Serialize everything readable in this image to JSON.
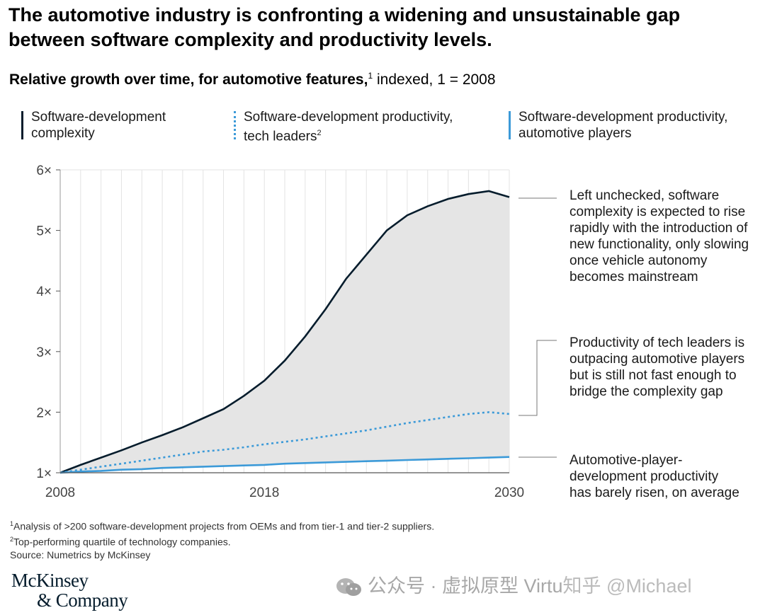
{
  "title": "The automotive industry is confronting a widening and unsustainable gap between software complexity and productivity levels.",
  "subtitle": {
    "bold": "Relative growth over time, for automotive features,",
    "sup": "1",
    "rest": " indexed, 1 = 2008"
  },
  "legend": [
    {
      "line1": "Software-development",
      "line2": "complexity",
      "sup": ""
    },
    {
      "line1": "Software-development productivity,",
      "line2": "tech leaders",
      "sup": "2"
    },
    {
      "line1": "Software-development productivity,",
      "line2": "automotive players",
      "sup": ""
    }
  ],
  "annotations": [
    {
      "lines": [
        "Left unchecked, software",
        "complexity is expected to rise",
        "rapidly with the introduction of",
        "new functionality, only slowing",
        "once vehicle autonomy",
        "becomes mainstream"
      ]
    },
    {
      "lines": [
        "Productivity of tech leaders is",
        "outpacing automotive players",
        "but is still not fast enough to",
        "bridge the complexity gap"
      ]
    },
    {
      "lines": [
        "Automotive-player-",
        "development productivity",
        "has barely risen, on average"
      ]
    }
  ],
  "footnotes": [
    {
      "sup": "1",
      "text": "Analysis of >200 software-development projects from OEMs and from tier-1 and tier-2 suppliers."
    },
    {
      "sup": "2",
      "text": "Top-performing quartile of technology companies."
    },
    {
      "sup": "",
      "text": "Source: Numetrics by McKinsey"
    }
  ],
  "logo": {
    "line1": "McKinsey",
    "line2": "& Company"
  },
  "watermark": {
    "main": "公众号 · 虚拟原型 Virtu",
    "tail": "知乎 @Michael"
  },
  "colors": {
    "dark": "#051c2c",
    "light": "#3c9ad8",
    "fill": "#e5e5e5",
    "grid": "#e3e3e3"
  },
  "chart_data": {
    "type": "line",
    "title": "Relative growth over time, for automotive features, indexed, 1 = 2008",
    "xlabel": "",
    "ylabel": "",
    "xlim": [
      2008,
      2030
    ],
    "ylim": [
      1,
      6
    ],
    "x_ticks": [
      {
        "value": 2008,
        "label": "2008"
      },
      {
        "value": 2018,
        "label": "2018"
      },
      {
        "value": 2030,
        "label": "2030"
      }
    ],
    "y_ticks": [
      {
        "value": 1,
        "label": "1×"
      },
      {
        "value": 2,
        "label": "2×"
      },
      {
        "value": 3,
        "label": "3×"
      },
      {
        "value": 4,
        "label": "4×"
      },
      {
        "value": 5,
        "label": "5×"
      },
      {
        "value": 6,
        "label": "6×"
      }
    ],
    "grid": "vertical",
    "x": [
      2008,
      2009,
      2010,
      2011,
      2012,
      2013,
      2014,
      2015,
      2016,
      2017,
      2018,
      2019,
      2020,
      2021,
      2022,
      2023,
      2024,
      2025,
      2026,
      2027,
      2028,
      2029,
      2030
    ],
    "series": [
      {
        "name": "Software-development complexity",
        "style": "solid-dark",
        "values": [
          1.0,
          1.13,
          1.25,
          1.37,
          1.5,
          1.62,
          1.75,
          1.9,
          2.05,
          2.27,
          2.52,
          2.85,
          3.25,
          3.7,
          4.2,
          4.6,
          5.0,
          5.25,
          5.4,
          5.52,
          5.6,
          5.65,
          5.55
        ]
      },
      {
        "name": "Software-development productivity, tech leaders",
        "style": "dotted-light",
        "values": [
          1.0,
          1.05,
          1.1,
          1.15,
          1.2,
          1.25,
          1.3,
          1.35,
          1.38,
          1.42,
          1.47,
          1.51,
          1.55,
          1.6,
          1.65,
          1.7,
          1.76,
          1.82,
          1.87,
          1.92,
          1.97,
          2.0,
          1.97
        ]
      },
      {
        "name": "Software-development productivity, automotive players",
        "style": "solid-light",
        "values": [
          1.0,
          1.02,
          1.03,
          1.05,
          1.06,
          1.08,
          1.09,
          1.1,
          1.11,
          1.12,
          1.13,
          1.15,
          1.16,
          1.17,
          1.18,
          1.19,
          1.2,
          1.21,
          1.22,
          1.23,
          1.24,
          1.25,
          1.26
        ]
      }
    ]
  }
}
